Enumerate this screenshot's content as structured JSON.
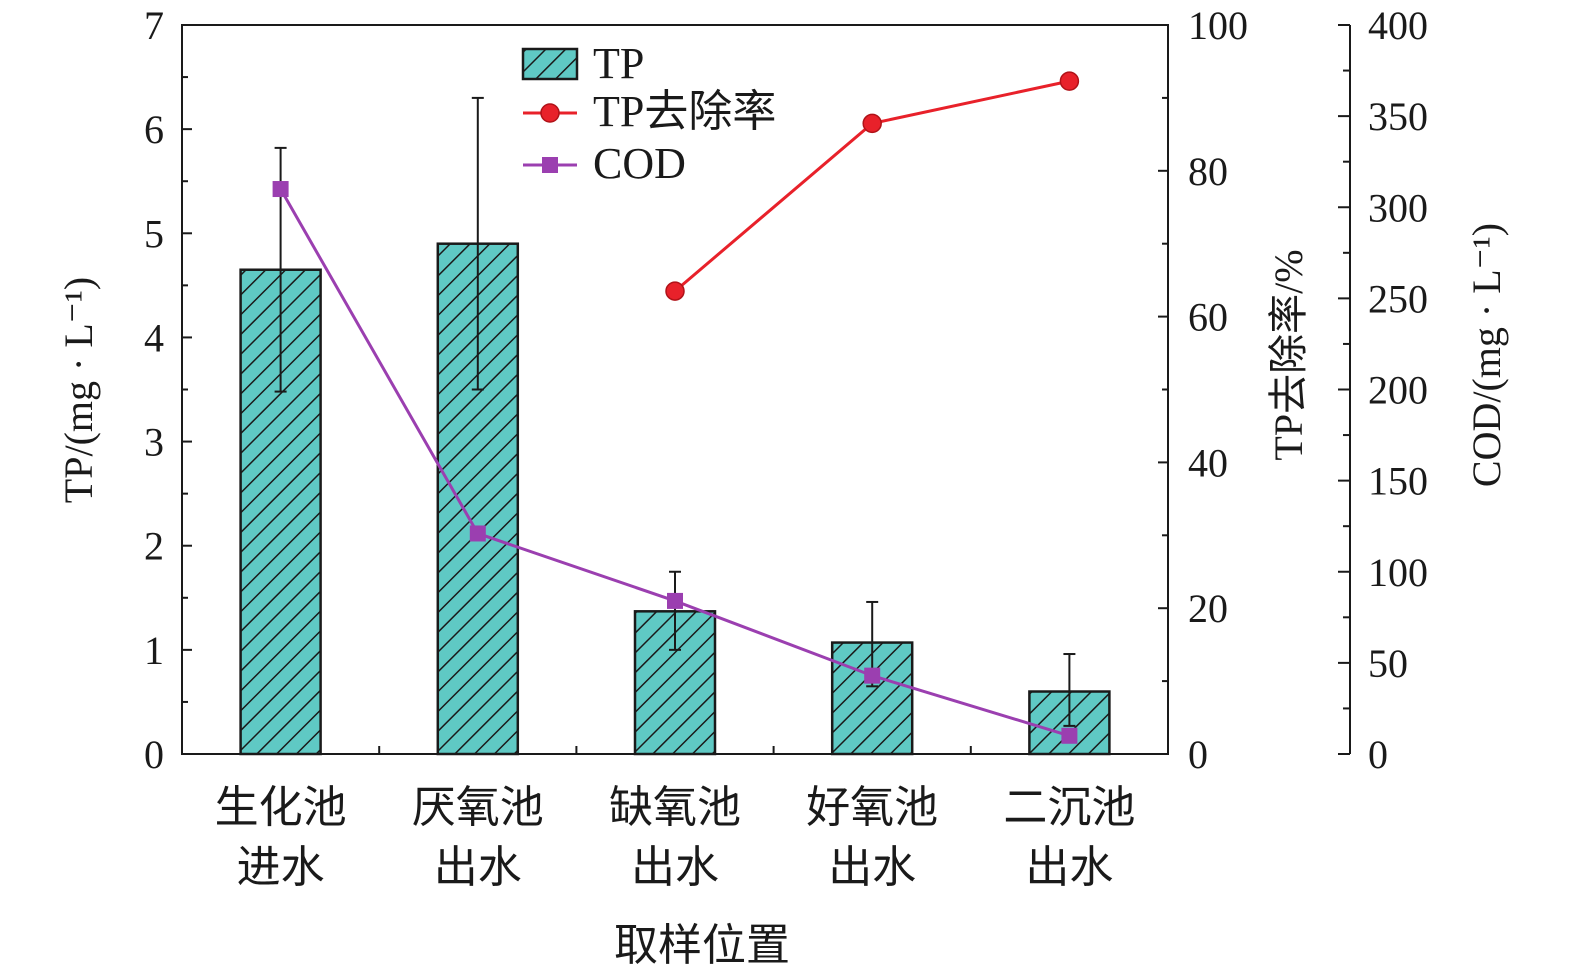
{
  "chart_data": {
    "type": "bar",
    "categories": [
      [
        "生化池",
        "进水"
      ],
      [
        "厌氧池",
        "出水"
      ],
      [
        "缺氧池",
        "出水"
      ],
      [
        "好氧池",
        "出水"
      ],
      [
        "二沉池",
        "出水"
      ]
    ],
    "xlabel": "取样位置",
    "axes": {
      "left": {
        "label": "TP/(mg · L⁻¹)",
        "ylim": [
          0,
          7
        ],
        "ticks": [
          0,
          1,
          2,
          3,
          4,
          5,
          6,
          7
        ]
      },
      "right1": {
        "label": "TP去除率/%",
        "ylim": [
          0,
          100
        ],
        "ticks": [
          0,
          20,
          40,
          60,
          80,
          100
        ]
      },
      "right2": {
        "label": "COD/(mg · L⁻¹)",
        "ylim": [
          0,
          400
        ],
        "ticks": [
          0,
          50,
          100,
          150,
          200,
          250,
          300,
          350,
          400
        ]
      }
    },
    "series": [
      {
        "name": "TP",
        "type": "bar",
        "axis": "left",
        "values": [
          4.65,
          4.9,
          1.37,
          1.07,
          0.6
        ],
        "error_low": [
          3.48,
          3.5,
          1.0,
          0.65,
          0.27
        ],
        "error_high": [
          5.82,
          6.3,
          1.75,
          1.46,
          0.96
        ],
        "color": "#5fc9c4"
      },
      {
        "name": "TP去除率",
        "type": "line",
        "axis": "right1",
        "values": [
          null,
          null,
          63.5,
          86.5,
          92.3
        ],
        "color": "#e8212a"
      },
      {
        "name": "COD",
        "type": "line",
        "axis": "right2",
        "values": [
          310,
          121,
          84,
          43,
          10
        ],
        "color": "#9b3fb0"
      }
    ],
    "legend_position": "top-center"
  }
}
